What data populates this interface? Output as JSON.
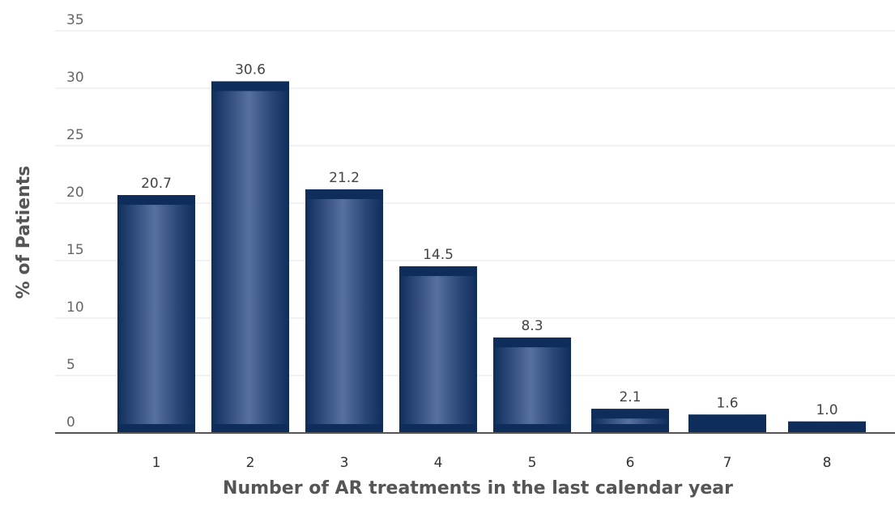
{
  "chart_data": {
    "type": "bar",
    "title": "",
    "xlabel": "Number of AR treatments in the last calendar year",
    "ylabel": "% of Patients",
    "categories": [
      "1",
      "2",
      "3",
      "4",
      "5",
      "6",
      "7",
      "8"
    ],
    "values": [
      20.7,
      30.6,
      21.2,
      14.5,
      8.3,
      2.1,
      1.6,
      1.0
    ],
    "data_labels": [
      "20.7",
      "30.6",
      "21.2",
      "14.5",
      "8.3",
      "2.1",
      "1.6",
      "1.0"
    ],
    "yticks": [
      "0",
      "5",
      "10",
      "15",
      "20",
      "25",
      "30",
      "35"
    ],
    "ylim": [
      0,
      35
    ],
    "grid": true,
    "legend": "none",
    "colors": {
      "bar_dark": "#0f2d5a",
      "bar_light": "#4f6a9c",
      "grid": "#e6e6e6",
      "axis": "#555555"
    }
  }
}
